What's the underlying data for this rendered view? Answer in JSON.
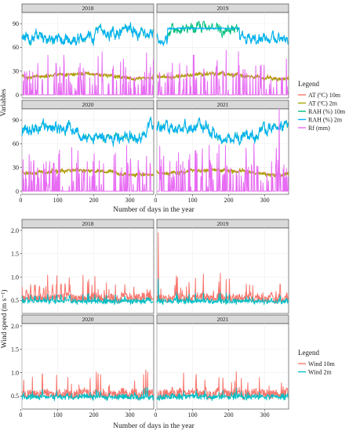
{
  "charts": [
    {
      "id": "top",
      "type": "line",
      "facets": [
        "2018",
        "2019",
        "2020",
        "2021"
      ],
      "xlabel": "Number of days in the year",
      "ylabel": "Variables",
      "xlim": [
        1,
        366
      ],
      "ylim": [
        -4,
        104
      ],
      "x_ticks": [
        "0",
        "100",
        "200",
        "300"
      ],
      "x_tick_values": [
        0,
        100,
        200,
        300
      ],
      "y_ticks": [
        "0",
        "30",
        "60",
        "90"
      ],
      "y_tick_values": [
        0,
        30,
        60,
        90
      ],
      "legend_title": "Legend",
      "grid": true,
      "legend_position": "right",
      "series": [
        {
          "key": "at10",
          "name": "AT (ºC) 10m",
          "color": "#F8766D"
        },
        {
          "key": "at2",
          "name": "AT (ºC) 2m",
          "color": "#A3A500"
        },
        {
          "key": "rah10",
          "name": "RAH (%) 10m",
          "color": "#00BF7D"
        },
        {
          "key": "rah2",
          "name": "RAH (%) 2m",
          "color": "#00B0F6"
        },
        {
          "key": "rf",
          "name": "Rf (mm)",
          "color": "#E76BF3"
        }
      ]
    },
    {
      "id": "bottom",
      "type": "line",
      "facets": [
        "2018",
        "2019",
        "2020",
        "2021"
      ],
      "xlabel": "Number of days in the year",
      "ylabel": "Wind speed (m s⁻¹)",
      "xlim": [
        1,
        366
      ],
      "ylim": [
        0.22,
        2.05
      ],
      "x_ticks": [
        "0",
        "100",
        "200",
        "300"
      ],
      "x_tick_values": [
        0,
        100,
        200,
        300
      ],
      "y_ticks": [
        "0.5",
        "1.0",
        "1.5",
        "2.0"
      ],
      "y_tick_values": [
        0.5,
        1.0,
        1.5,
        2.0
      ],
      "legend_title": "Legend",
      "grid": true,
      "legend_position": "right",
      "series": [
        {
          "key": "w10",
          "name": "Wind 10m",
          "color": "#F8766D"
        },
        {
          "key": "w2",
          "name": "Wind 2m",
          "color": "#00BFC4"
        }
      ]
    }
  ],
  "chart_data": [
    {
      "type": "line",
      "facets": [
        "2018",
        "2019",
        "2020",
        "2021"
      ],
      "xlabel": "Number of days in the year",
      "ylabel": "Variables",
      "x_range": [
        1,
        366
      ],
      "ylim": [
        0,
        100
      ],
      "series_names": [
        "AT (ºC) 10m",
        "AT (ºC) 2m",
        "RAH (%) 10m",
        "RAH (%) 2m",
        "Rf (mm)"
      ],
      "approximate_levels": {
        "AT (ºC) 10m": {
          "typical_range": [
            18,
            32
          ]
        },
        "AT (ºC) 2m": {
          "typical_range": [
            18,
            32
          ]
        },
        "RAH (%) 10m": {
          "typical_range": [
            50,
            92
          ]
        },
        "RAH (%) 2m": {
          "typical_range": [
            50,
            92
          ]
        },
        "Rf (mm)": {
          "typical_range": [
            0,
            45
          ],
          "peak_2021": 105
        }
      }
    },
    {
      "type": "line",
      "facets": [
        "2018",
        "2019",
        "2020",
        "2021"
      ],
      "xlabel": "Number of days in the year",
      "ylabel": "Wind speed (m s⁻¹)",
      "x_range": [
        1,
        366
      ],
      "ylim": [
        0.25,
        2.0
      ],
      "series_names": [
        "Wind 10m",
        "Wind 2m"
      ],
      "approximate_levels": {
        "Wind 10m": {
          "typical_range": [
            0.4,
            1.1
          ],
          "peak_2019": 1.95
        },
        "Wind 2m": {
          "typical_range": [
            0.35,
            0.75
          ]
        }
      }
    }
  ]
}
